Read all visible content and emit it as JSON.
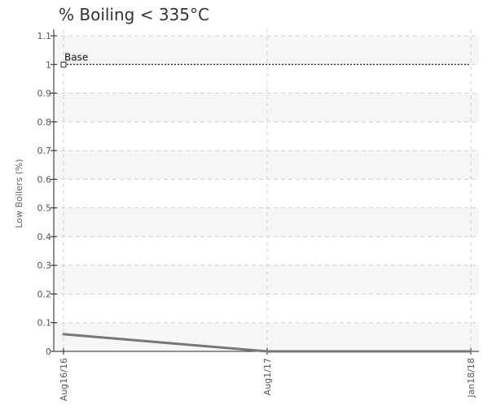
{
  "chart_data": {
    "type": "line",
    "title": "% Boiling < 335°C",
    "ylabel": "Low Boilers (%)",
    "xlabel": "",
    "ylim": [
      0,
      1.1
    ],
    "yticks": [
      0,
      0.1,
      0.2,
      0.3,
      0.4,
      0.5,
      0.6,
      0.7,
      0.8,
      0.9,
      1,
      1.1
    ],
    "ytick_labels": [
      "0",
      "0.1",
      "0.2",
      "0.3",
      "0.4",
      "0.5",
      "0.6",
      "0.7",
      "0.8",
      "0.9",
      "1",
      "1.1"
    ],
    "categories": [
      "Aug16/16",
      "Aug1/17",
      "Jan18/18"
    ],
    "series": [
      {
        "values": [
          0.06,
          0.0,
          0.0
        ],
        "color": "#777777"
      }
    ],
    "reference_line": {
      "label": "Base",
      "value": 1.0,
      "color": "#222222",
      "style": "dotted"
    },
    "grid": true,
    "shaded_bands": true
  }
}
